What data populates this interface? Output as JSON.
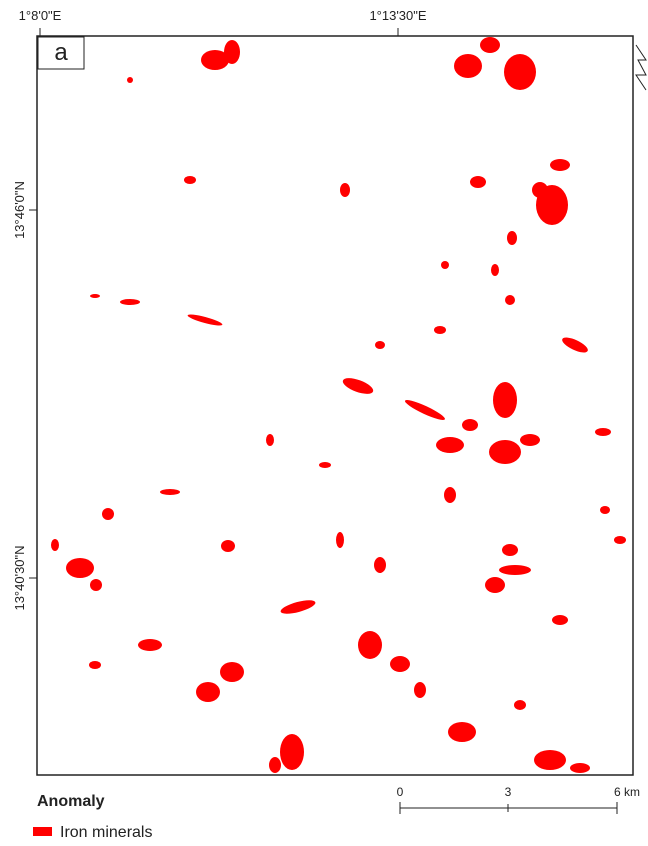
{
  "panel_label": "a",
  "map": {
    "lon_labels": [
      "1°8'0\"E",
      "1°13'30\"E"
    ],
    "lat_labels": [
      "13°46'0\"N",
      "13°40'30\"N"
    ]
  },
  "scale_bar": {
    "labels": [
      "0",
      "3",
      "6 km"
    ]
  },
  "legend": {
    "title": "Anomaly",
    "items": [
      "Iron minerals"
    ]
  }
}
